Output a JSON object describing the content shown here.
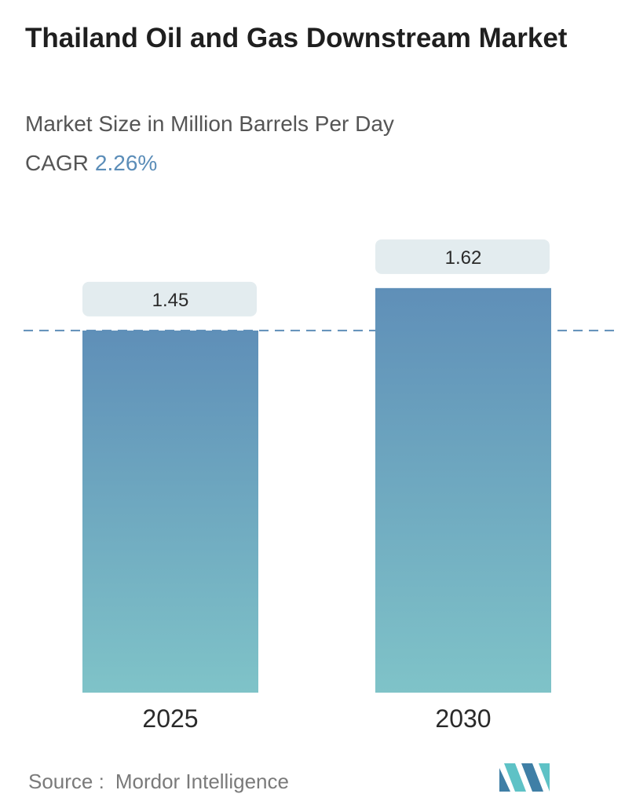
{
  "header": {
    "title": "Thailand Oil and Gas Downstream Market",
    "subtitle": "Market Size in Million Barrels Per Day",
    "cagr_label": "CAGR",
    "cagr_value": "2.26%"
  },
  "chart_data": {
    "type": "bar",
    "categories": [
      "2025",
      "2030"
    ],
    "values": [
      1.45,
      1.62
    ],
    "value_labels": [
      "1.45",
      "1.62"
    ],
    "reference_line": 1.45,
    "grid": false,
    "colors": {
      "bar_top": "#5f8fb8",
      "bar_bottom": "#7fc3c8",
      "label_bg": "#e3ecef",
      "reference_line": "#5f8fb8"
    }
  },
  "footer": {
    "source_label": "Source :",
    "source_name": "Mordor Intelligence",
    "logo_colors": [
      "#3f7fa6",
      "#5ec2c6"
    ]
  }
}
